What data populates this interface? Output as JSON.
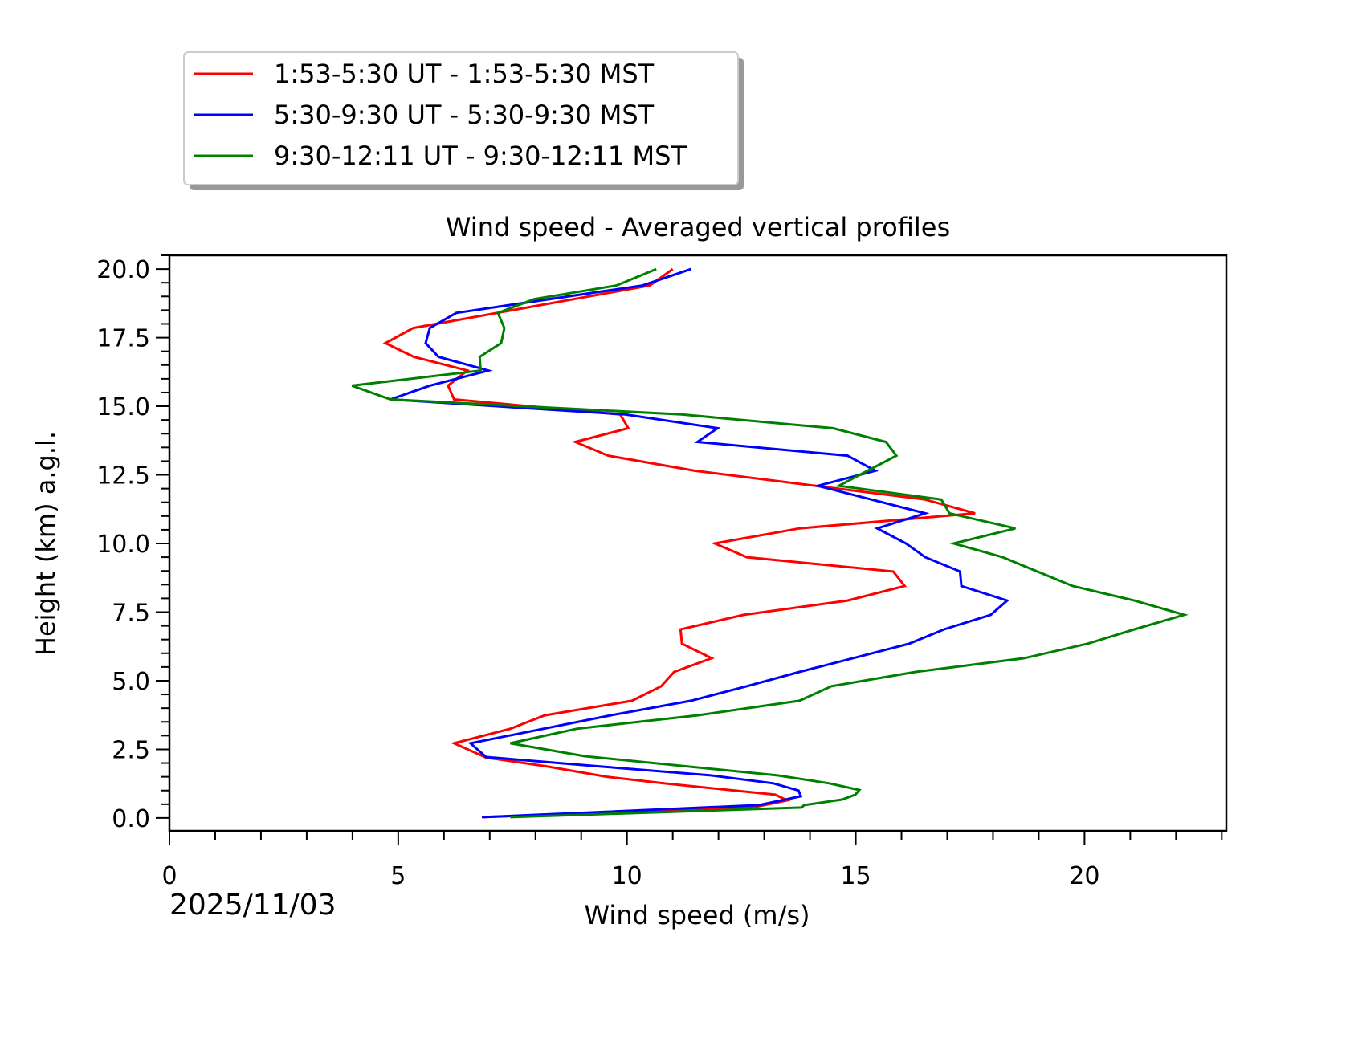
{
  "chart_data": {
    "type": "line",
    "title": "Wind speed - Averaged vertical profiles",
    "xlabel": "Wind speed (m/s)",
    "ylabel": "Height (km) a.g.l.",
    "date_label": "2025/11/03",
    "xlim": [
      0,
      23.1
    ],
    "ylim": [
      -0.47,
      20.5
    ],
    "x_ticks": [
      0,
      5,
      10,
      15,
      20
    ],
    "x_tick_labels": [
      "0",
      "5",
      "10",
      "15",
      "20"
    ],
    "y_ticks": [
      0,
      2.5,
      5,
      7.5,
      10,
      12.5,
      15,
      17.5,
      20
    ],
    "y_tick_labels": [
      "0.0",
      "2.5",
      "5.0",
      "7.5",
      "10.0",
      "12.5",
      "15.0",
      "17.5",
      "20.0"
    ],
    "grid": false,
    "legend_position": "above-left",
    "series": [
      {
        "name": "1:53-5:30 UT - 1:53-5:30 MST",
        "color": "#ff0000",
        "x": [
          11.0,
          10.5,
          5.33,
          4.72,
          5.34,
          6.51,
          6.09,
          6.22,
          9.85,
          10.03,
          8.87,
          9.59,
          11.48,
          16.52,
          17.61,
          13.77,
          11.92,
          12.62,
          15.82,
          16.07,
          14.82,
          12.55,
          11.17,
          11.2,
          11.85,
          11.03,
          10.75,
          10.11,
          8.2,
          7.45,
          6.22,
          6.92,
          8.24,
          9.56,
          10.8,
          13.24,
          13.5,
          12.8,
          6.83
        ],
        "y": [
          20.0,
          19.4,
          17.85,
          17.3,
          16.8,
          16.3,
          15.75,
          15.25,
          14.7,
          14.2,
          13.7,
          13.2,
          12.65,
          11.6,
          11.1,
          10.55,
          10.0,
          9.5,
          8.98,
          8.45,
          7.92,
          7.4,
          6.87,
          6.35,
          5.82,
          5.32,
          4.8,
          4.27,
          3.74,
          3.25,
          2.72,
          2.2,
          1.88,
          1.5,
          1.26,
          0.85,
          0.64,
          0.4,
          0.03
        ]
      },
      {
        "name": "5:30-9:30 UT - 5:30-9:30 MST",
        "color": "#0000ff",
        "x": [
          11.4,
          10.34,
          6.27,
          5.69,
          5.6,
          5.88,
          6.97,
          5.69,
          4.83,
          9.96,
          11.98,
          11.54,
          14.82,
          15.43,
          14.17,
          16.52,
          15.47,
          16.1,
          16.52,
          17.28,
          17.31,
          18.31,
          17.95,
          16.93,
          16.17,
          14.94,
          13.77,
          12.62,
          11.4,
          9.64,
          6.58,
          6.92,
          9.46,
          11.83,
          13.2,
          13.75,
          13.8,
          12.89,
          6.83
        ],
        "y": [
          20.0,
          19.4,
          18.4,
          17.85,
          17.3,
          16.8,
          16.3,
          15.75,
          15.25,
          14.7,
          14.2,
          13.7,
          13.2,
          12.65,
          12.1,
          11.1,
          10.55,
          10.0,
          9.5,
          8.98,
          8.45,
          7.92,
          7.4,
          6.87,
          6.35,
          5.82,
          5.32,
          4.8,
          4.27,
          3.74,
          2.72,
          2.22,
          1.87,
          1.55,
          1.26,
          1.0,
          0.79,
          0.47,
          0.03
        ]
      },
      {
        "name": "9:30-12:11 UT - 9:30-12:11 MST",
        "color": "#008000",
        "x": [
          10.64,
          9.77,
          7.97,
          7.18,
          7.32,
          7.25,
          6.78,
          6.8,
          3.99,
          4.83,
          11.19,
          14.5,
          15.66,
          15.89,
          14.63,
          16.87,
          17.05,
          18.49,
          17.14,
          18.21,
          19.74,
          21.09,
          22.18,
          21.09,
          20.07,
          18.68,
          16.31,
          14.47,
          13.77,
          11.54,
          8.9,
          7.45,
          9.08,
          13.29,
          14.42,
          15.08,
          14.99,
          14.7,
          13.87,
          13.82,
          7.45
        ],
        "y": [
          20.0,
          19.4,
          18.9,
          18.4,
          17.85,
          17.3,
          16.8,
          16.3,
          15.75,
          15.25,
          14.7,
          14.2,
          13.7,
          13.2,
          12.1,
          11.6,
          11.1,
          10.55,
          10.0,
          9.5,
          8.45,
          7.92,
          7.4,
          6.87,
          6.35,
          5.82,
          5.32,
          4.8,
          4.27,
          3.74,
          3.25,
          2.72,
          2.25,
          1.55,
          1.26,
          1.02,
          0.85,
          0.67,
          0.47,
          0.38,
          0.03
        ]
      }
    ]
  }
}
